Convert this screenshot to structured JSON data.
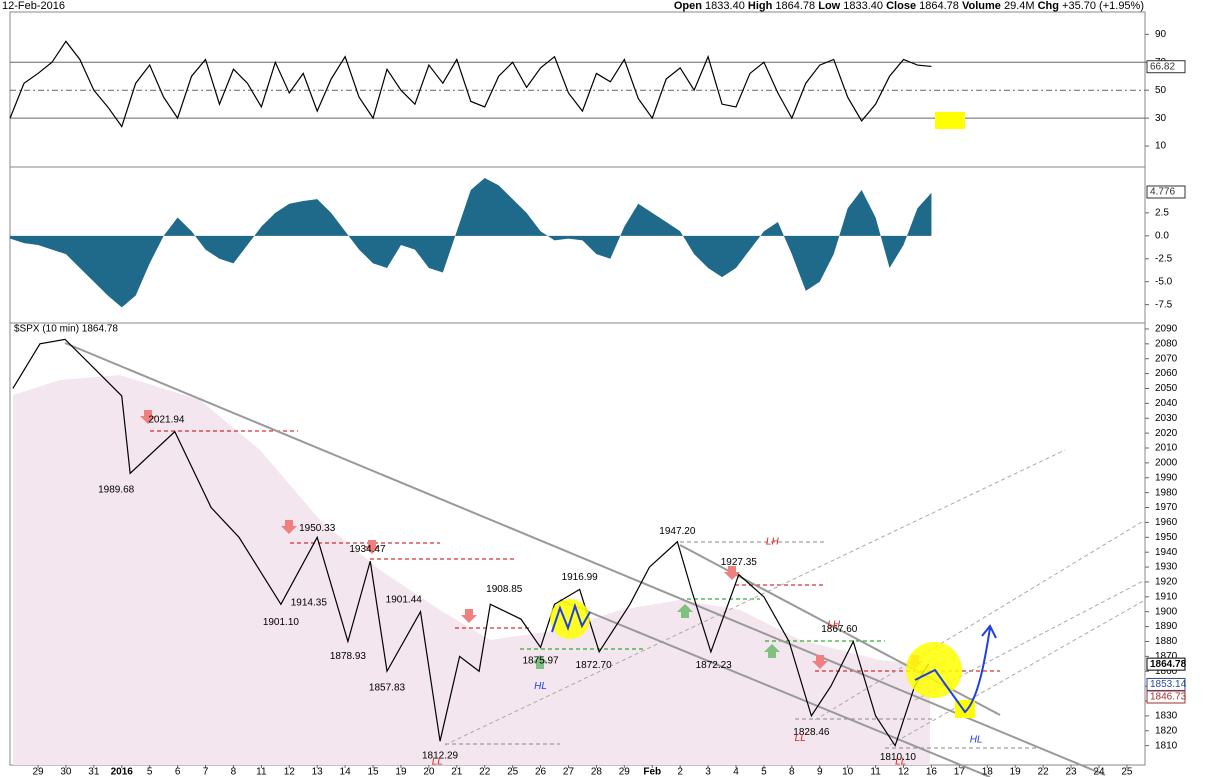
{
  "header": {
    "date": "12-Feb-2016",
    "fields": [
      {
        "name": "Open",
        "value": "1833.40"
      },
      {
        "name": "High",
        "value": "1864.78"
      },
      {
        "name": "Low",
        "value": "1833.40"
      },
      {
        "name": "Close",
        "value": "1864.78"
      },
      {
        "name": "Volume",
        "value": "29.4M"
      },
      {
        "name": "Chg",
        "value": "+35.70 (+1.95%)"
      }
    ]
  },
  "chart_data": [
    {
      "type": "line",
      "color": "#000000",
      "x": [
        -1,
        -0.5,
        0,
        0.5,
        1,
        1.5,
        2,
        2.5,
        3,
        3.5,
        4,
        4.5,
        5,
        5.5,
        6,
        6.5,
        7,
        7.5,
        8,
        8.5,
        9,
        9.5,
        10,
        10.5,
        11,
        11.5,
        12,
        12.5,
        13,
        13.5,
        14,
        14.5,
        15,
        15.5,
        16,
        16.5,
        17,
        17.5,
        18,
        18.5,
        19,
        19.5,
        20,
        20.5,
        21,
        21.5,
        22,
        22.5,
        23,
        23.5,
        24,
        24.5,
        25,
        25.5,
        26,
        26.5,
        27,
        27.5,
        28,
        28.5,
        29,
        29.5,
        30,
        30.5,
        31,
        31.5,
        32
      ],
      "values": [
        30,
        55,
        62,
        70,
        85,
        72,
        50,
        38,
        24,
        55,
        68,
        45,
        30,
        60,
        72,
        40,
        65,
        55,
        38,
        70,
        48,
        62,
        35,
        58,
        74,
        45,
        30,
        65,
        50,
        40,
        68,
        55,
        72,
        42,
        38,
        60,
        70,
        52,
        66,
        74,
        48,
        35,
        62,
        56,
        72,
        44,
        30,
        58,
        66,
        50,
        74,
        40,
        38,
        62,
        70,
        48,
        30,
        55,
        68,
        72,
        45,
        28,
        40,
        60,
        72,
        68,
        67
      ],
      "ylim": [
        -5,
        106
      ],
      "yticks": [
        10,
        30,
        50,
        70,
        90
      ],
      "hlines": [
        70,
        30
      ],
      "midline": 50,
      "last": 66.82
    },
    {
      "type": "area",
      "color": "#1f6a8a",
      "x": [
        -1,
        -0.5,
        0,
        0.5,
        1,
        1.5,
        2,
        2.5,
        3,
        3.5,
        4,
        4.5,
        5,
        5.5,
        6,
        6.5,
        7,
        7.5,
        8,
        8.5,
        9,
        9.5,
        10,
        10.5,
        11,
        11.5,
        12,
        12.5,
        13,
        13.5,
        14,
        14.5,
        15,
        15.5,
        16,
        16.5,
        17,
        17.5,
        18,
        18.5,
        19,
        19.5,
        20,
        20.5,
        21,
        21.5,
        22,
        22.5,
        23,
        23.5,
        24,
        24.5,
        25,
        25.5,
        26,
        26.5,
        27,
        27.5,
        28,
        28.5,
        29,
        29.5,
        30,
        30.5,
        31,
        31.5,
        32
      ],
      "values": [
        -0.3,
        -0.8,
        -1,
        -1.5,
        -2,
        -3.5,
        -5,
        -6.5,
        -7.8,
        -6.5,
        -3,
        0,
        2,
        0.5,
        -1.5,
        -2.5,
        -3,
        -1,
        1,
        2.5,
        3.5,
        3.8,
        4,
        2.5,
        0.5,
        -1.5,
        -3,
        -3.5,
        -1,
        -1.5,
        -3.5,
        -4,
        0.5,
        5,
        6.3,
        5.5,
        4,
        2.5,
        0.5,
        -0.5,
        -0.3,
        -0.5,
        -2,
        -2.5,
        1,
        3.5,
        2.5,
        1.5,
        0.5,
        -2,
        -3.5,
        -4.5,
        -3.5,
        -1.5,
        0.5,
        1.5,
        -2,
        -6,
        -5,
        -2,
        3,
        5,
        2,
        -3.5,
        -1,
        3,
        4.7
      ],
      "ylim": [
        -9.5,
        7.5
      ],
      "yticks": [
        2.5,
        {
          "value": 0,
          "label": "0.0"
        },
        -2.5,
        {
          "value": -5,
          "label": "-5.0"
        },
        -7.5
      ],
      "last": 4.776
    },
    {
      "type": "line",
      "color": "#000000",
      "title": "$SPX (10 min) 1864.78",
      "x": [
        -0.9,
        0.07,
        0.97,
        2.2,
        3.0,
        3.3,
        4.9,
        6.2,
        7.2,
        8.7,
        10.0,
        11.1,
        11.9,
        12.5,
        13.7,
        14.4,
        15.1,
        15.8,
        16.2,
        17.3,
        18.0,
        18.5,
        19.4,
        20.1,
        21.2,
        21.9,
        22.9,
        23.4,
        24.1,
        25.1,
        26.0,
        26.9,
        27.7,
        28.4,
        29.2,
        30.0,
        30.7,
        31.4,
        31.9
      ],
      "values": [
        2050,
        2080,
        2083,
        2060,
        2045,
        1993,
        2021,
        1970,
        1950,
        1905,
        1950,
        1880,
        1934,
        1860,
        1900,
        1813,
        1870,
        1860,
        1905,
        1895,
        1876,
        1905,
        1915,
        1873,
        1905,
        1930,
        1947,
        1915,
        1873,
        1925,
        1910,
        1880,
        1830,
        1850,
        1880,
        1830,
        1810,
        1850,
        1865
      ],
      "ylim": [
        1797,
        2094
      ],
      "yticks": [
        1810,
        1820,
        1830,
        1840,
        1850,
        1860,
        1870,
        1880,
        1890,
        1900,
        1910,
        1920,
        1930,
        1940,
        1950,
        1960,
        1970,
        1980,
        1990,
        2000,
        2010,
        2020,
        2030,
        2040,
        2050,
        2060,
        2070,
        2080,
        2090
      ],
      "xticks": [
        {
          "value": 0,
          "label": "29"
        },
        {
          "value": 1,
          "label": "30"
        },
        {
          "value": 2,
          "label": "31"
        },
        {
          "value": 3,
          "label": "2016"
        },
        {
          "value": 4,
          "label": "5"
        },
        {
          "value": 5,
          "label": "6"
        },
        {
          "value": 6,
          "label": "7"
        },
        {
          "value": 7,
          "label": "8"
        },
        {
          "value": 8,
          "label": "11"
        },
        {
          "value": 9,
          "label": "12"
        },
        {
          "value": 10,
          "label": "13"
        },
        {
          "value": 11,
          "label": "14"
        },
        {
          "value": 12,
          "label": "15"
        },
        {
          "value": 13,
          "label": "19"
        },
        {
          "value": 14,
          "label": "20"
        },
        {
          "value": 15,
          "label": "21"
        },
        {
          "value": 16,
          "label": "22"
        },
        {
          "value": 17,
          "label": "25"
        },
        {
          "value": 18,
          "label": "26"
        },
        {
          "value": 19,
          "label": "27"
        },
        {
          "value": 20,
          "label": "28"
        },
        {
          "value": 21,
          "label": "29"
        },
        {
          "value": 22,
          "label": "Feb"
        },
        {
          "value": 23,
          "label": "2"
        },
        {
          "value": 24,
          "label": "3"
        },
        {
          "value": 25,
          "label": "4"
        },
        {
          "value": 26,
          "label": "5"
        },
        {
          "value": 27,
          "label": "8"
        },
        {
          "value": 28,
          "label": "9"
        },
        {
          "value": 29,
          "label": "10"
        },
        {
          "value": 30,
          "label": "11"
        },
        {
          "value": 31,
          "label": "12"
        },
        {
          "value": 32,
          "label": "16"
        },
        {
          "value": 33,
          "label": "17"
        },
        {
          "value": 34,
          "label": "18"
        },
        {
          "value": 35,
          "label": "19"
        },
        {
          "value": 36,
          "label": "22"
        },
        {
          "value": 37,
          "label": "23"
        },
        {
          "value": 38,
          "label": "24"
        },
        {
          "value": 39,
          "label": "25"
        }
      ],
      "annotations": [
        {
          "label": "2021.94",
          "x": 4.6,
          "y": 2029
        },
        {
          "label": "1989.68",
          "x": 2.8,
          "y": 1982
        },
        {
          "label": "1950.33",
          "x": 10.0,
          "y": 1956
        },
        {
          "label": "1934.47",
          "x": 11.8,
          "y": 1942
        },
        {
          "label": "1914.35",
          "x": 9.7,
          "y": 1906
        },
        {
          "label": "1901.10",
          "x": 8.7,
          "y": 1893
        },
        {
          "label": "1901.44",
          "x": 13.1,
          "y": 1908
        },
        {
          "label": "1878.93",
          "x": 11.1,
          "y": 1870
        },
        {
          "label": "1857.83",
          "x": 12.5,
          "y": 1849
        },
        {
          "label": "1812.29",
          "x": 14.4,
          "y": 1803
        },
        {
          "label": "1908.85",
          "x": 16.7,
          "y": 1915
        },
        {
          "label": "1916.99",
          "x": 19.4,
          "y": 1923
        },
        {
          "label": "1875.97",
          "x": 18.0,
          "y": 1867
        },
        {
          "label": "1872.70",
          "x": 19.9,
          "y": 1864
        },
        {
          "label": "1947.20",
          "x": 22.9,
          "y": 1954
        },
        {
          "label": "1927.35",
          "x": 25.1,
          "y": 1933
        },
        {
          "label": "1872.23",
          "x": 24.2,
          "y": 1864
        },
        {
          "label": "1867.60",
          "x": 28.7,
          "y": 1888
        },
        {
          "label": "1828.46",
          "x": 27.7,
          "y": 1819
        },
        {
          "label": "1810.10",
          "x": 30.8,
          "y": 1802
        }
      ],
      "handwritten": [
        {
          "label": "LH",
          "x": 26.3,
          "y": 1947,
          "color": "#e02020"
        },
        {
          "label": "LH",
          "x": 28.5,
          "y": 1891,
          "color": "#e02020"
        },
        {
          "label": "HL",
          "x": 18.0,
          "y": 1850,
          "color": "#2040e0"
        },
        {
          "label": "LL",
          "x": 14.3,
          "y": 1799,
          "color": "#e02020"
        },
        {
          "label": "LL",
          "x": 27.3,
          "y": 1815,
          "color": "#e02020"
        },
        {
          "label": "LL",
          "x": 30.9,
          "y": 1799,
          "color": "#e02020"
        },
        {
          "label": "HL",
          "x": 33.6,
          "y": 1814,
          "color": "#2040e0"
        }
      ],
      "last": [
        1864.78,
        1853.14,
        1846.73
      ],
      "last_colors": [
        "#000000",
        "#2a4a9a",
        "#a03030"
      ]
    }
  ]
}
